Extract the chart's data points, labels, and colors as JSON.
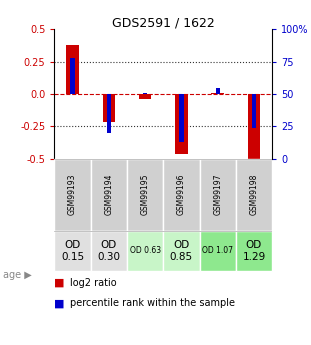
{
  "title": "GDS2591 / 1622",
  "samples": [
    "GSM99193",
    "GSM99194",
    "GSM99195",
    "GSM99196",
    "GSM99197",
    "GSM99198"
  ],
  "log2_ratio": [
    0.38,
    -0.22,
    -0.04,
    -0.46,
    0.01,
    -0.52
  ],
  "percentile_rank": [
    0.78,
    0.2,
    0.51,
    0.13,
    0.55,
    0.24
  ],
  "ylim": [
    -0.5,
    0.5
  ],
  "yticks_left": [
    -0.5,
    -0.25,
    0.0,
    0.25,
    0.5
  ],
  "yticks_right": [
    0,
    25,
    50,
    75,
    100
  ],
  "age_labels": [
    "OD\n0.15",
    "OD\n0.30",
    "OD 0.63",
    "OD\n0.85",
    "OD 1.07",
    "OD\n1.29"
  ],
  "age_bg_colors": [
    "#e0e0e0",
    "#e0e0e0",
    "#c8f5c8",
    "#c8f5c8",
    "#8ee88e",
    "#8ee88e"
  ],
  "age_fontsize_large": [
    true,
    true,
    false,
    true,
    false,
    true
  ],
  "sample_bg_color": "#d0d0d0",
  "bar_color_red": "#cc0000",
  "bar_color_blue": "#0000cc",
  "dotted_color": "#333333",
  "dashed_color": "#cc0000",
  "left_axis_color": "#cc0000",
  "right_axis_color": "#0000cc",
  "bar_width": 0.35,
  "percentile_bar_width": 0.12
}
